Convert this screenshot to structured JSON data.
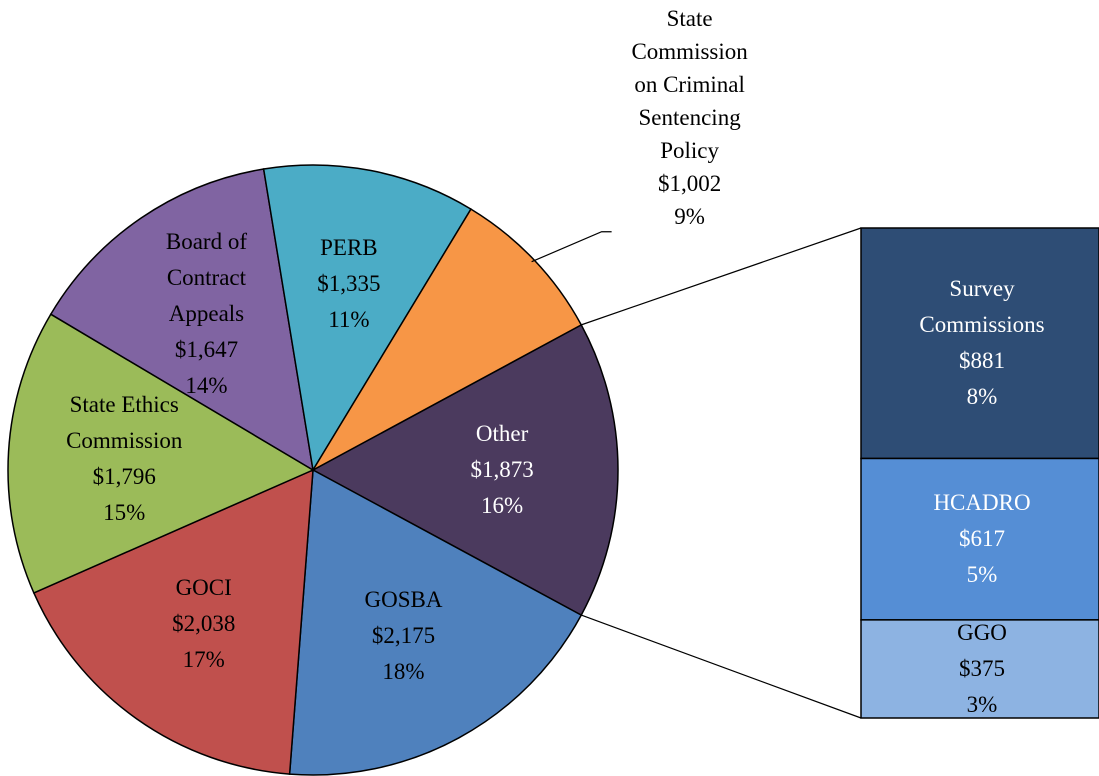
{
  "chart_data": {
    "type": "pie-of-bar",
    "pie": {
      "categories": [
        "Other",
        "GOSBA",
        "GOCI",
        "State Ethics Commission",
        "Board of Contract Appeals",
        "PERB",
        "State Commission on Criminal Sentencing Policy"
      ],
      "values": [
        1873,
        2175,
        2038,
        1796,
        1647,
        1335,
        1002
      ],
      "value_labels": [
        "$1,873",
        "$2,175",
        "$2,038",
        "$1,796",
        "$1,647",
        "$1,335",
        "$1,002"
      ],
      "percent_labels": [
        "16%",
        "18%",
        "17%",
        "15%",
        "14%",
        "11%",
        "9%"
      ],
      "colors": [
        "#4b3a5e",
        "#4f81bd",
        "#c0504d",
        "#9bbb59",
        "#8064a2",
        "#4bacc6",
        "#f79646"
      ]
    },
    "bar": {
      "categories": [
        "Survey Commissions",
        "HCADRO",
        "GGO"
      ],
      "values": [
        881,
        617,
        375
      ],
      "value_labels": [
        "$881",
        "$617",
        "$375"
      ],
      "percent_labels": [
        "8%",
        "5%",
        "3%"
      ],
      "colors": [
        "#2e4d75",
        "#558ed5",
        "#8db3e2"
      ]
    }
  }
}
